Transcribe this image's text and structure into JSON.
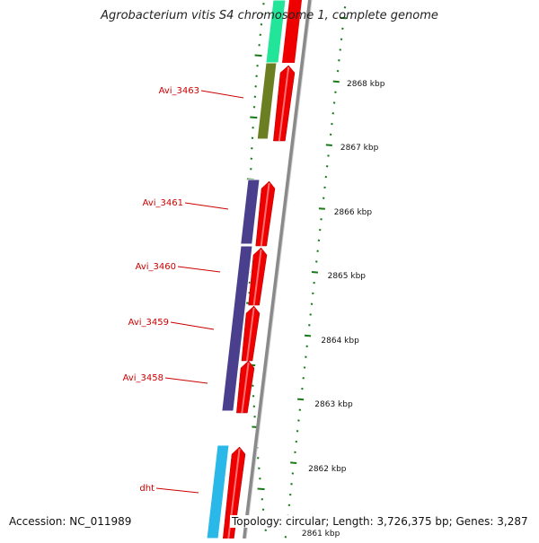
{
  "title": "Agrobacterium vitis S4 chromosome 1, complete genome",
  "footer": {
    "accession": "Accession: NC_011989",
    "topology": "Topology: circular; Length: 3,726,375 bp; Genes: 3,287"
  },
  "colors": {
    "label": "#cc0000",
    "tick": "#1a7a1a",
    "forward_arrow": "#ee0000",
    "backbone": "#8a8a8a"
  },
  "scale_labels": [
    "2868 kbp",
    "2867 kbp",
    "2866 kbp",
    "2865 kbp",
    "2864 kbp",
    "2863 kbp",
    "2862 kbp",
    "2861 kbp"
  ],
  "genes": [
    {
      "name": "Avi_3463",
      "color": "#6b7f22"
    },
    {
      "name": "Avi_3461",
      "color": "#4a3f8c"
    },
    {
      "name": "Avi_3460",
      "color": "#4a3f8c"
    },
    {
      "name": "Avi_3459",
      "color": "#4a3f8c"
    },
    {
      "name": "Avi_3458",
      "color": "#4a3f8c"
    },
    {
      "name": "dht",
      "color": "#2ab8e8"
    }
  ],
  "top_gene_color": "#22e59a"
}
